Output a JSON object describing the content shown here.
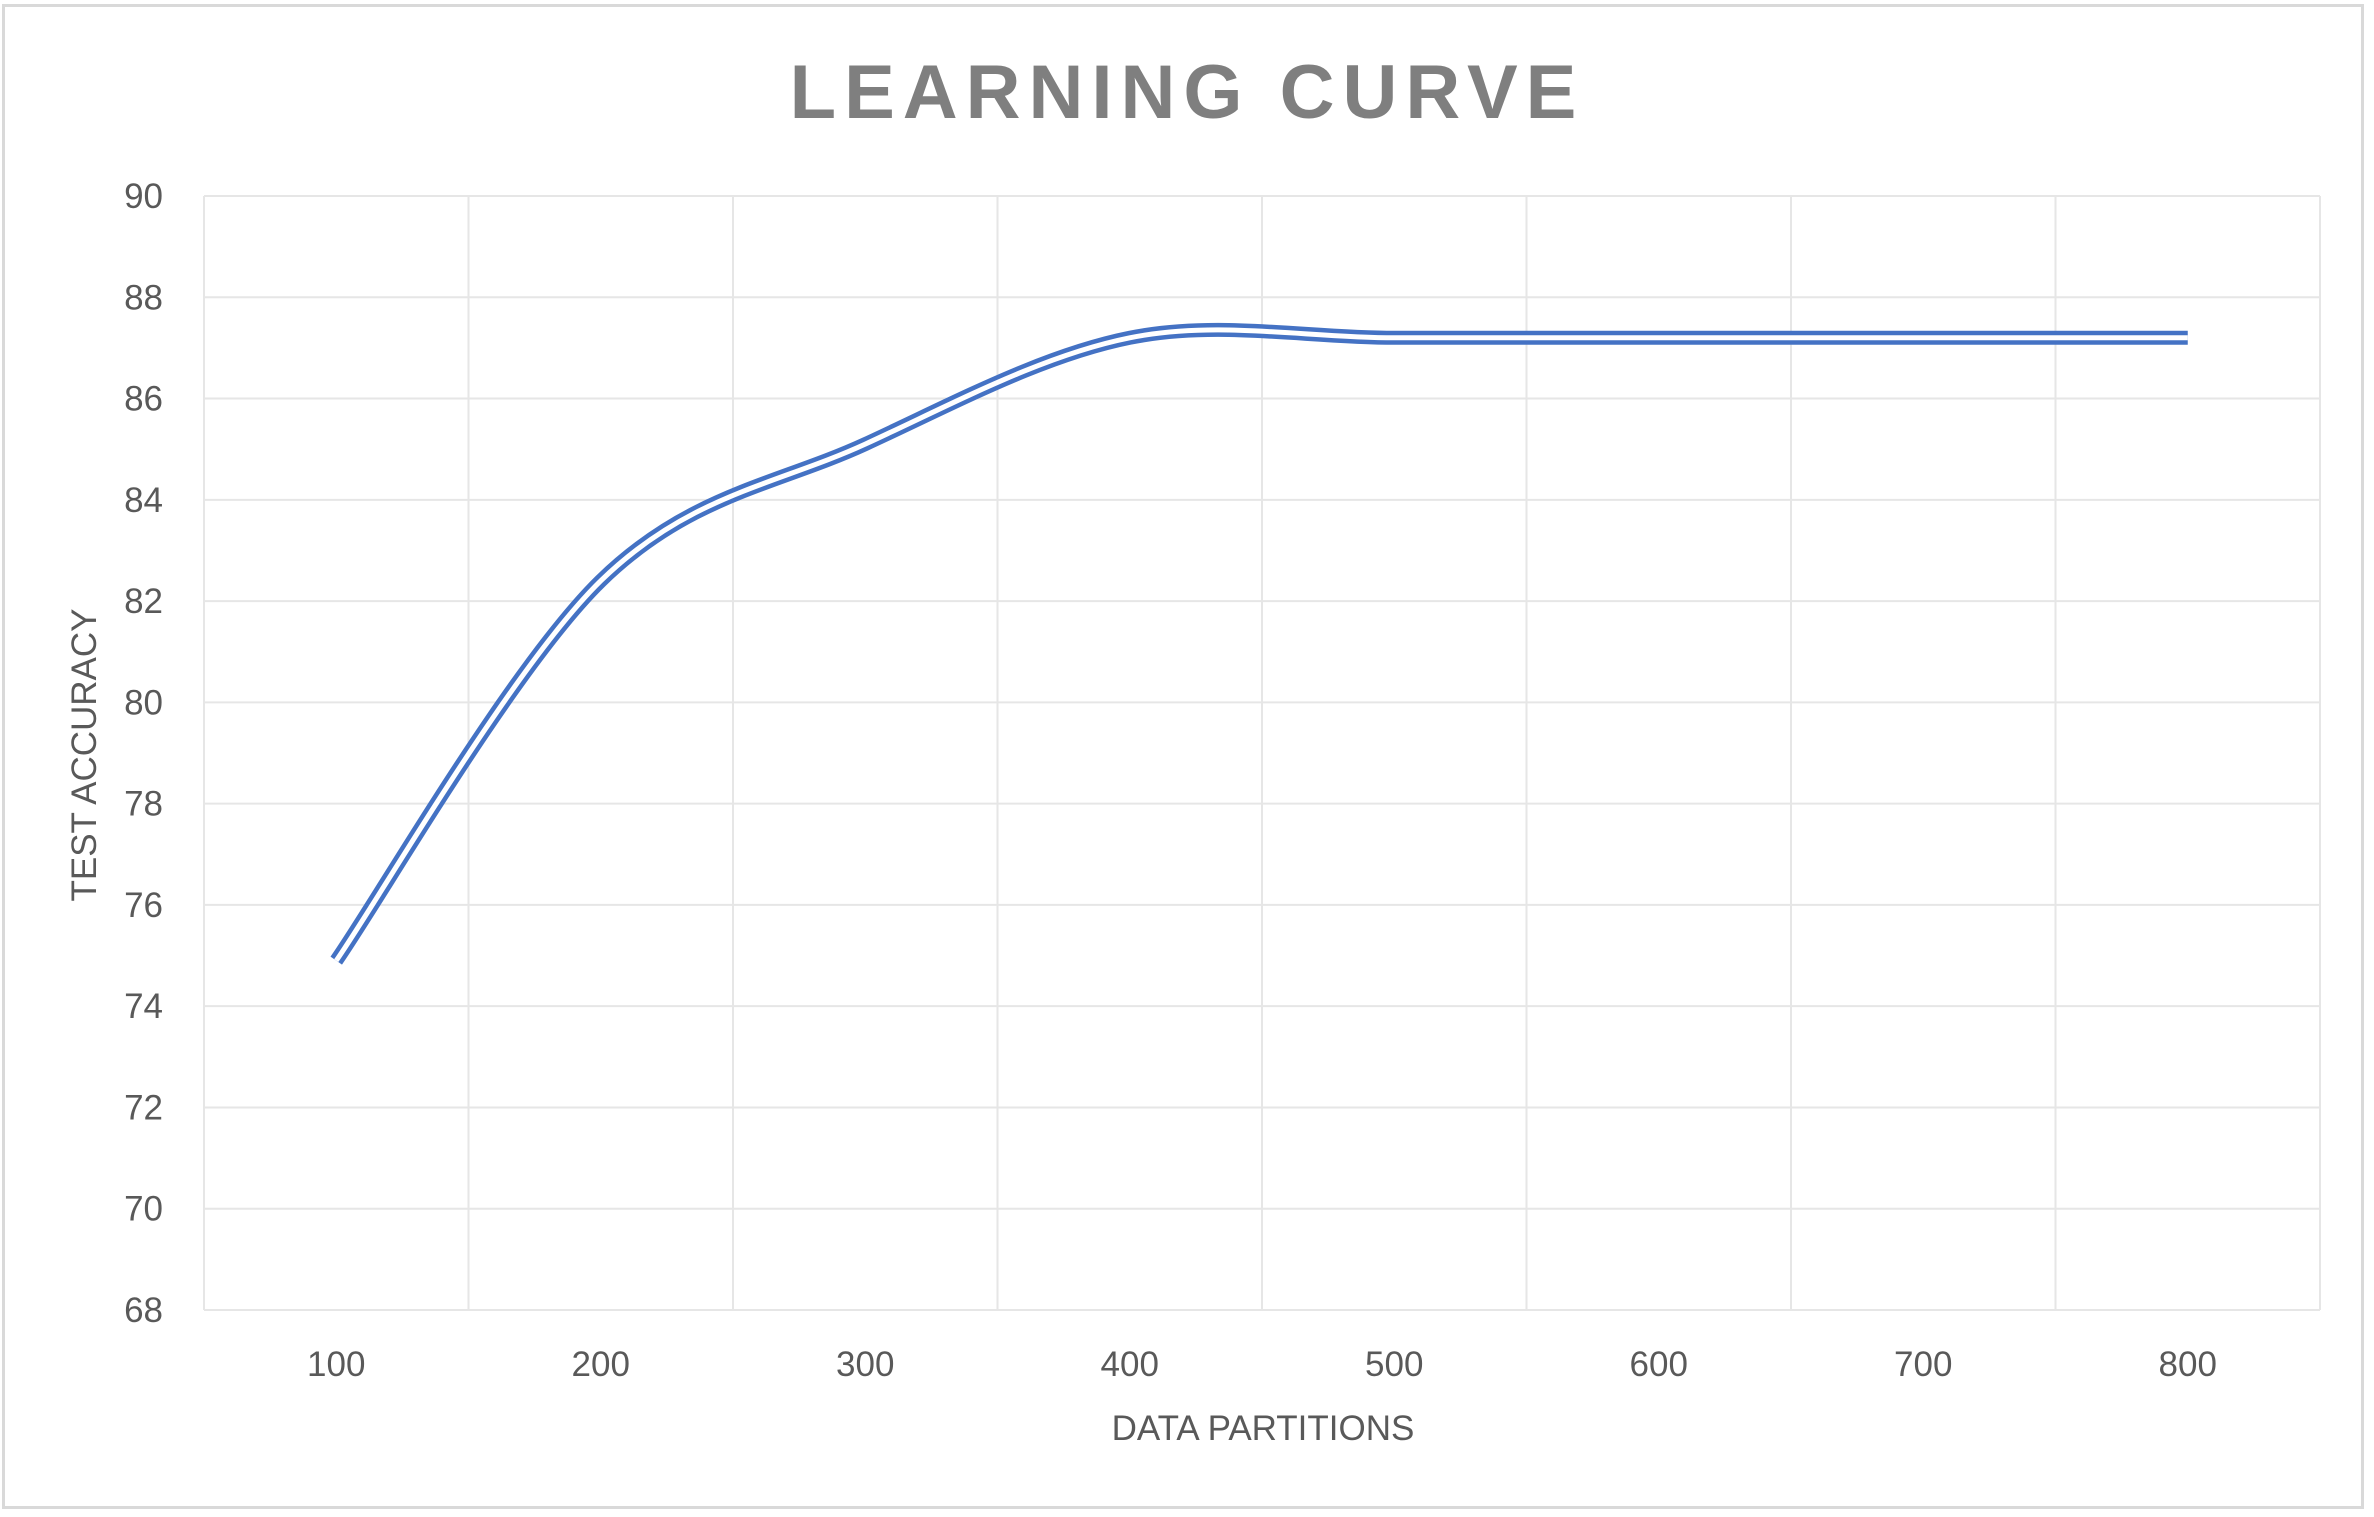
{
  "chart_data": {
    "type": "line",
    "title": "LEARNING CURVE",
    "xlabel": "DATA PARTITIONS",
    "ylabel": "TEST ACCURACY",
    "x": [
      100,
      200,
      300,
      400,
      500,
      600,
      700,
      800
    ],
    "x_tick_labels": [
      "100",
      "200",
      "300",
      "400",
      "500",
      "600",
      "700",
      "800"
    ],
    "y_tick_labels": [
      "68",
      "70",
      "72",
      "74",
      "76",
      "78",
      "80",
      "82",
      "84",
      "86",
      "88",
      "90"
    ],
    "xlim": [
      50,
      850
    ],
    "ylim": [
      68,
      90
    ],
    "grid": true,
    "legend": "none",
    "smooth": true,
    "series": [
      {
        "values": [
          74.9,
          82.4,
          85.1,
          87.2,
          87.2,
          87.2,
          87.2,
          87.2
        ],
        "color": "#4472c4",
        "style": "double-line"
      }
    ]
  }
}
